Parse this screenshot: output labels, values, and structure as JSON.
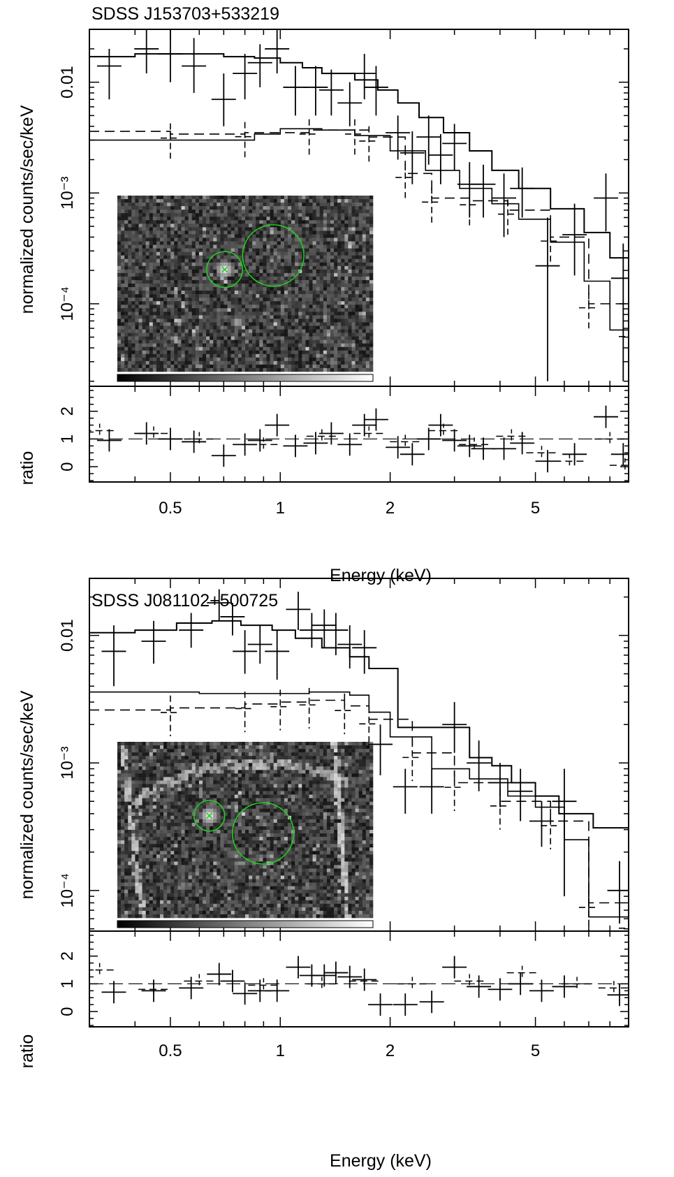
{
  "figure": {
    "xlabel": "Energy (keV)",
    "ylabel_spectrum": "normalized counts/sec/keV",
    "ylabel_ratio": "ratio",
    "x_tick_labels": [
      "0.5",
      "1",
      "2",
      "5"
    ],
    "x_ticks": [
      0.5,
      1,
      2,
      5
    ]
  },
  "chart_data": [
    {
      "type": "line",
      "title": "SDSS J153703+533219",
      "xlabel": "Energy (keV)",
      "ylabel": "normalized counts/sec/keV",
      "x_scale": "log",
      "y_scale": "log",
      "xlim": [
        0.3,
        9.0
      ],
      "ylim": [
        1.8e-05,
        0.03
      ],
      "ytick_labels": [
        "0.01",
        "10⁻³",
        "10⁻⁴"
      ],
      "yticks": [
        0.01,
        0.001,
        0.0001
      ],
      "model_total": [
        [
          0.3,
          0.017
        ],
        [
          0.4,
          0.018
        ],
        [
          0.55,
          0.018
        ],
        [
          0.7,
          0.017
        ],
        [
          0.85,
          0.0165
        ],
        [
          1.0,
          0.015
        ],
        [
          1.15,
          0.0135
        ],
        [
          1.3,
          0.012
        ],
        [
          1.6,
          0.0105
        ],
        [
          1.85,
          0.0085
        ],
        [
          2.1,
          0.0065
        ],
        [
          2.4,
          0.0048
        ],
        [
          2.8,
          0.0035
        ],
        [
          3.3,
          0.0024
        ],
        [
          3.8,
          0.0016
        ],
        [
          4.5,
          0.0011
        ],
        [
          5.5,
          0.00072
        ],
        [
          6.8,
          0.00044
        ],
        [
          8.0,
          0.00026
        ],
        [
          9.0,
          0.00017
        ]
      ],
      "model_component_pl": [
        [
          0.3,
          0.003
        ],
        [
          0.6,
          0.003
        ],
        [
          0.85,
          0.0034
        ],
        [
          1.0,
          0.0038
        ],
        [
          1.3,
          0.0037
        ],
        [
          1.6,
          0.0033
        ],
        [
          2.0,
          0.0024
        ],
        [
          2.5,
          0.0016
        ],
        [
          3.1,
          0.0011
        ],
        [
          3.8,
          0.0008
        ],
        [
          4.5,
          0.00058
        ],
        [
          5.5,
          0.00036
        ],
        [
          6.8,
          0.00016
        ],
        [
          8.0,
          5.8e-05
        ],
        [
          9.0,
          5.5e-05
        ]
      ],
      "model_component_dashed": [
        [
          0.3,
          0.0036
        ],
        [
          0.5,
          0.0034
        ],
        [
          0.8,
          0.0035
        ],
        [
          1.2,
          0.0037
        ],
        [
          1.6,
          0.0037
        ],
        [
          1.75,
          0.0032
        ],
        [
          2.2,
          0.0015
        ],
        [
          2.6,
          0.0009
        ],
        [
          3.3,
          0.00085
        ],
        [
          4.2,
          0.0007
        ],
        [
          5.5,
          0.0004
        ],
        [
          7.0,
          0.0001
        ],
        [
          9.0,
          5.5e-05
        ]
      ],
      "data_solid": [
        [
          0.34,
          0.014,
          0.02,
          0.007,
          0.02
        ],
        [
          0.43,
          0.02,
          0.035,
          0.012,
          0.03
        ],
        [
          0.5,
          0.018,
          0.03,
          0.01,
          0.02
        ],
        [
          0.58,
          0.014,
          0.025,
          0.008,
          0.02
        ],
        [
          0.7,
          0.007,
          0.012,
          0.004,
          0.01
        ],
        [
          0.8,
          0.012,
          0.018,
          0.007,
          0.01
        ],
        [
          0.88,
          0.015,
          0.022,
          0.009,
          0.01
        ],
        [
          0.98,
          0.02,
          0.032,
          0.012,
          0.03
        ],
        [
          1.1,
          0.009,
          0.014,
          0.005,
          0.01
        ],
        [
          1.25,
          0.009,
          0.014,
          0.005,
          0.01
        ],
        [
          1.38,
          0.0085,
          0.013,
          0.005,
          0.01
        ],
        [
          1.55,
          0.0065,
          0.01,
          0.004,
          0.01
        ],
        [
          1.7,
          0.012,
          0.018,
          0.007,
          0.01
        ],
        [
          1.83,
          0.009,
          0.014,
          0.005,
          0.01
        ],
        [
          2.1,
          0.0035,
          0.005,
          0.002,
          0.01
        ],
        [
          2.3,
          0.0023,
          0.0036,
          0.0012,
          0.01
        ],
        [
          2.55,
          0.0032,
          0.005,
          0.0018,
          0.01
        ],
        [
          2.75,
          0.0022,
          0.0034,
          0.0012,
          0.01
        ],
        [
          3.0,
          0.0028,
          0.0042,
          0.0016,
          0.01
        ],
        [
          3.3,
          0.0012,
          0.0019,
          0.0006,
          0.01
        ],
        [
          3.6,
          0.0012,
          0.0018,
          0.0006,
          0.01
        ],
        [
          4.1,
          0.0009,
          0.0015,
          0.0004,
          0.01
        ],
        [
          4.6,
          0.0011,
          0.0017,
          0.0006,
          0.01
        ],
        [
          5.4,
          0.00022,
          0.0006,
          2e-05,
          0.01
        ],
        [
          6.4,
          0.00042,
          0.0008,
          0.00018,
          0.01
        ],
        [
          7.8,
          0.0009,
          0.0015,
          0.00045,
          0.01
        ],
        [
          8.7,
          0.00017,
          0.00035,
          2e-05,
          0.01
        ]
      ],
      "ratio": {
        "ylim": [
          -0.55,
          2.9
        ],
        "ytick_labels": [
          "0",
          "1",
          "2"
        ],
        "yticks": [
          0,
          1,
          2
        ],
        "reference": 1,
        "points_solid": [
          [
            0.34,
            0.95
          ],
          [
            0.43,
            1.2
          ],
          [
            0.5,
            1.0
          ],
          [
            0.58,
            0.9
          ],
          [
            0.7,
            0.4
          ],
          [
            0.8,
            0.8
          ],
          [
            0.88,
            0.95
          ],
          [
            0.98,
            1.5
          ],
          [
            1.1,
            0.75
          ],
          [
            1.25,
            0.85
          ],
          [
            1.38,
            1.2
          ],
          [
            1.55,
            0.8
          ],
          [
            1.7,
            1.5
          ],
          [
            1.83,
            1.7
          ],
          [
            2.1,
            0.7
          ],
          [
            2.3,
            0.45
          ],
          [
            2.55,
            1.0
          ],
          [
            2.75,
            1.5
          ],
          [
            3.0,
            0.95
          ],
          [
            3.3,
            0.75
          ],
          [
            3.6,
            0.65
          ],
          [
            4.1,
            0.65
          ],
          [
            4.6,
            0.85
          ],
          [
            5.4,
            0.2
          ],
          [
            6.4,
            0.45
          ],
          [
            7.8,
            1.8
          ],
          [
            8.7,
            0.45
          ]
        ],
        "points_dashed": [
          [
            0.32,
            1.3
          ],
          [
            0.45,
            1.2
          ],
          [
            0.6,
            1.0
          ],
          [
            0.9,
            0.8
          ],
          [
            1.3,
            1.1
          ],
          [
            1.75,
            1.2
          ],
          [
            2.2,
            0.9
          ],
          [
            2.8,
            1.3
          ],
          [
            3.4,
            0.8
          ],
          [
            4.3,
            1.1
          ],
          [
            5.2,
            0.5
          ],
          [
            6.2,
            0.2
          ],
          [
            8.0,
            1.0
          ],
          [
            8.8,
            0.05
          ]
        ]
      },
      "inset": {
        "seed": 11,
        "bright_src": [
          0.42,
          0.42
        ],
        "bright_r": 0.07,
        "src_circle": [
          0.42,
          0.42,
          0.07
        ],
        "bkg_circle": [
          0.61,
          0.34,
          0.12
        ],
        "faint_src": [
          0.47,
          0.72
        ],
        "arcs": false
      }
    },
    {
      "type": "line",
      "title": "SDSS J081102+500725",
      "xlabel": "Energy (keV)",
      "ylabel": "normalized counts/sec/keV",
      "x_scale": "log",
      "y_scale": "log",
      "xlim": [
        0.3,
        9.0
      ],
      "ylim": [
        4.8e-05,
        0.028
      ],
      "ytick_labels": [
        "0.01",
        "10⁻³",
        "10⁻⁴"
      ],
      "yticks": [
        0.01,
        0.001,
        0.0001
      ],
      "model_total": [
        [
          0.3,
          0.0105
        ],
        [
          0.4,
          0.011
        ],
        [
          0.52,
          0.0125
        ],
        [
          0.65,
          0.013
        ],
        [
          0.78,
          0.012
        ],
        [
          0.95,
          0.011
        ],
        [
          1.1,
          0.0095
        ],
        [
          1.3,
          0.008
        ],
        [
          1.55,
          0.0068
        ],
        [
          1.75,
          0.0055
        ],
        [
          2.1,
          0.0019
        ],
        [
          3.1,
          0.0019
        ],
        [
          3.3,
          0.0011
        ],
        [
          3.8,
          0.00095
        ],
        [
          4.3,
          0.0007
        ],
        [
          5.0,
          0.00055
        ],
        [
          5.8,
          0.0004
        ],
        [
          7.2,
          0.00031
        ],
        [
          9.0,
          0.00016
        ]
      ],
      "model_component_pl": [
        [
          0.3,
          0.0036
        ],
        [
          0.6,
          0.0035
        ],
        [
          0.9,
          0.0035
        ],
        [
          1.2,
          0.0036
        ],
        [
          1.55,
          0.0034
        ],
        [
          1.75,
          0.0025
        ],
        [
          2.0,
          0.0016
        ],
        [
          2.6,
          0.0009
        ],
        [
          3.3,
          0.00075
        ],
        [
          4.2,
          0.00055
        ],
        [
          5.0,
          0.00045
        ],
        [
          6.0,
          0.00025
        ],
        [
          7.0,
          6.2e-05
        ],
        [
          9.0,
          5.5e-05
        ]
      ],
      "model_component_dashed": [
        [
          0.3,
          0.0026
        ],
        [
          0.5,
          0.0027
        ],
        [
          0.8,
          0.0029
        ],
        [
          1.0,
          0.003
        ],
        [
          1.2,
          0.0031
        ],
        [
          1.5,
          0.0028
        ],
        [
          1.75,
          0.0022
        ],
        [
          2.3,
          0.0012
        ],
        [
          3.0,
          0.0007
        ],
        [
          4.0,
          0.0005
        ],
        [
          5.5,
          0.00035
        ],
        [
          7.0,
          8e-05
        ],
        [
          9.0,
          5.5e-05
        ]
      ],
      "data_solid": [
        [
          0.35,
          0.0075,
          0.012,
          0.004,
          0.01
        ],
        [
          0.45,
          0.009,
          0.013,
          0.006,
          0.01
        ],
        [
          0.57,
          0.011,
          0.015,
          0.008,
          0.01
        ],
        [
          0.68,
          0.018,
          0.023,
          0.013,
          0.01
        ],
        [
          0.74,
          0.014,
          0.018,
          0.01,
          0.01
        ],
        [
          0.8,
          0.0075,
          0.011,
          0.005,
          0.01
        ],
        [
          0.88,
          0.0085,
          0.012,
          0.006,
          0.01
        ],
        [
          0.98,
          0.0075,
          0.011,
          0.0045,
          0.01
        ],
        [
          1.12,
          0.016,
          0.022,
          0.011,
          0.01
        ],
        [
          1.22,
          0.011,
          0.015,
          0.008,
          0.01
        ],
        [
          1.32,
          0.012,
          0.016,
          0.008,
          0.01
        ],
        [
          1.42,
          0.011,
          0.015,
          0.007,
          0.01
        ],
        [
          1.55,
          0.0085,
          0.012,
          0.0055,
          0.01
        ],
        [
          1.7,
          0.008,
          0.011,
          0.005,
          0.01
        ],
        [
          1.88,
          0.0014,
          0.002,
          0.0008,
          0.01
        ],
        [
          2.2,
          0.00065,
          0.0009,
          0.0004,
          0.01
        ],
        [
          2.6,
          0.00065,
          0.0009,
          0.0004,
          0.01
        ],
        [
          3.0,
          0.002,
          0.003,
          0.0012,
          0.01
        ],
        [
          3.5,
          0.001,
          0.0015,
          0.0006,
          0.01
        ],
        [
          4.0,
          0.0007,
          0.001,
          0.00045,
          0.01
        ],
        [
          4.55,
          0.0006,
          0.0009,
          0.00035,
          0.01
        ],
        [
          5.2,
          0.00035,
          0.0005,
          0.00022,
          0.01
        ],
        [
          6.0,
          0.0005,
          0.0009,
          9e-05,
          0.01
        ],
        [
          8.5,
          0.0001,
          0.00017,
          5.5e-05,
          0.01
        ]
      ],
      "ratio": {
        "ylim": [
          -0.55,
          2.9
        ],
        "ytick_labels": [
          "0",
          "1",
          "2"
        ],
        "yticks": [
          0,
          1,
          2
        ],
        "reference": 1,
        "points_solid": [
          [
            0.35,
            0.7
          ],
          [
            0.45,
            0.75
          ],
          [
            0.57,
            0.85
          ],
          [
            0.68,
            1.35
          ],
          [
            0.74,
            1.1
          ],
          [
            0.8,
            0.65
          ],
          [
            0.88,
            0.75
          ],
          [
            0.98,
            0.75
          ],
          [
            1.12,
            1.6
          ],
          [
            1.22,
            1.3
          ],
          [
            1.32,
            1.3
          ],
          [
            1.42,
            1.4
          ],
          [
            1.55,
            1.25
          ],
          [
            1.7,
            1.15
          ],
          [
            1.88,
            0.25
          ],
          [
            2.2,
            0.25
          ],
          [
            2.6,
            0.35
          ],
          [
            3.0,
            1.6
          ],
          [
            3.5,
            0.9
          ],
          [
            4.0,
            0.8
          ],
          [
            4.55,
            1.0
          ],
          [
            5.2,
            0.75
          ],
          [
            6.0,
            0.9
          ],
          [
            8.5,
            0.6
          ]
        ],
        "points_dashed": [
          [
            0.32,
            1.5
          ],
          [
            0.45,
            0.8
          ],
          [
            0.6,
            1.1
          ],
          [
            0.9,
            0.95
          ],
          [
            1.3,
            1.0
          ],
          [
            1.7,
            1.1
          ],
          [
            2.3,
            1.0
          ],
          [
            3.3,
            1.1
          ],
          [
            4.6,
            1.4
          ],
          [
            6.5,
            1.0
          ],
          [
            8.2,
            0.85
          ]
        ]
      },
      "inset": {
        "seed": 29,
        "bright_src": [
          0.36,
          0.42
        ],
        "bright_r": 0.06,
        "src_circle": [
          0.36,
          0.42,
          0.06
        ],
        "bkg_circle": [
          0.57,
          0.52,
          0.12
        ],
        "faint_src": null,
        "arcs": true
      }
    }
  ]
}
